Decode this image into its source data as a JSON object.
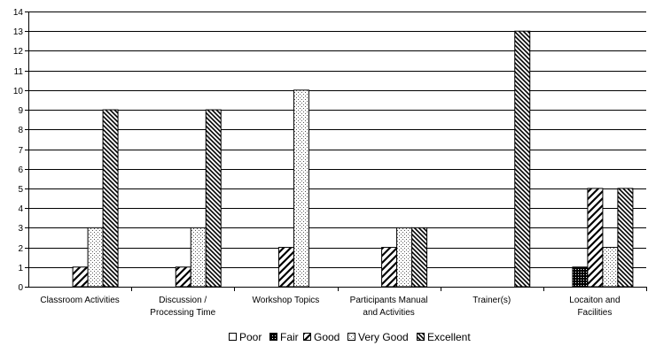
{
  "chart_data": {
    "type": "bar",
    "categories": [
      [
        "Classroom Activities"
      ],
      [
        "Discussion /",
        "Processing Time"
      ],
      [
        "Workshop Topics"
      ],
      [
        "Participants Manual",
        "and Activities"
      ],
      [
        "Trainer(s)"
      ],
      [
        "Locaiton and",
        "Facilities"
      ]
    ],
    "series": [
      {
        "name": "Poor",
        "values": [
          0,
          0,
          0,
          0,
          0,
          0
        ],
        "pattern": "pat-poor"
      },
      {
        "name": "Fair",
        "values": [
          0,
          0,
          0,
          0,
          0,
          1
        ],
        "pattern": "pat-fair"
      },
      {
        "name": "Good",
        "values": [
          1,
          1,
          2,
          2,
          0,
          5
        ],
        "pattern": "pat-good"
      },
      {
        "name": "Very Good",
        "values": [
          3,
          3,
          10,
          3,
          0,
          2
        ],
        "pattern": "pat-verygood"
      },
      {
        "name": "Excellent",
        "values": [
          9,
          9,
          0,
          3,
          13,
          5
        ],
        "pattern": "pat-excellent"
      }
    ],
    "ylim": [
      0,
      14
    ],
    "yticks": [
      0,
      1,
      2,
      3,
      4,
      5,
      6,
      7,
      8,
      9,
      10,
      11,
      12,
      13,
      14
    ],
    "grid": true,
    "legend": "bottom",
    "title": "",
    "xlabel": "",
    "ylabel": ""
  }
}
